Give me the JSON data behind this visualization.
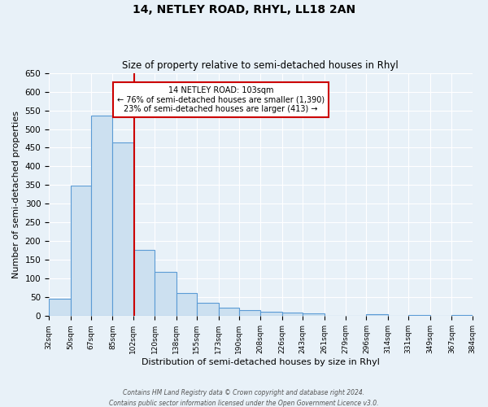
{
  "title": "14, NETLEY ROAD, RHYL, LL18 2AN",
  "subtitle": "Size of property relative to semi-detached houses in Rhyl",
  "xlabel": "Distribution of semi-detached houses by size in Rhyl",
  "ylabel": "Number of semi-detached properties",
  "bin_edges": [
    32,
    50,
    67,
    85,
    102,
    120,
    138,
    155,
    173,
    190,
    208,
    226,
    243,
    261,
    279,
    296,
    314,
    331,
    349,
    367,
    384
  ],
  "bar_heights": [
    47,
    348,
    535,
    465,
    178,
    118,
    62,
    35,
    22,
    15,
    11,
    10,
    8,
    1,
    0,
    5,
    0,
    3,
    0,
    3
  ],
  "bar_color": "#cce0f0",
  "bar_edge_color": "#5b9bd5",
  "property_size": 103,
  "property_line_color": "#cc0000",
  "annotation_text_line1": "14 NETLEY ROAD: 103sqm",
  "annotation_text_line2": "← 76% of semi-detached houses are smaller (1,390)",
  "annotation_text_line3": "23% of semi-detached houses are larger (413) →",
  "annotation_box_color": "#ffffff",
  "annotation_box_edge_color": "#cc0000",
  "ylim": [
    0,
    650
  ],
  "yticks": [
    0,
    50,
    100,
    150,
    200,
    250,
    300,
    350,
    400,
    450,
    500,
    550,
    600,
    650
  ],
  "bg_color": "#e8f1f8",
  "plot_bg_color": "#e8f1f8",
  "grid_color": "#ffffff",
  "footer_line1": "Contains HM Land Registry data © Crown copyright and database right 2024.",
  "footer_line2": "Contains public sector information licensed under the Open Government Licence v3.0."
}
